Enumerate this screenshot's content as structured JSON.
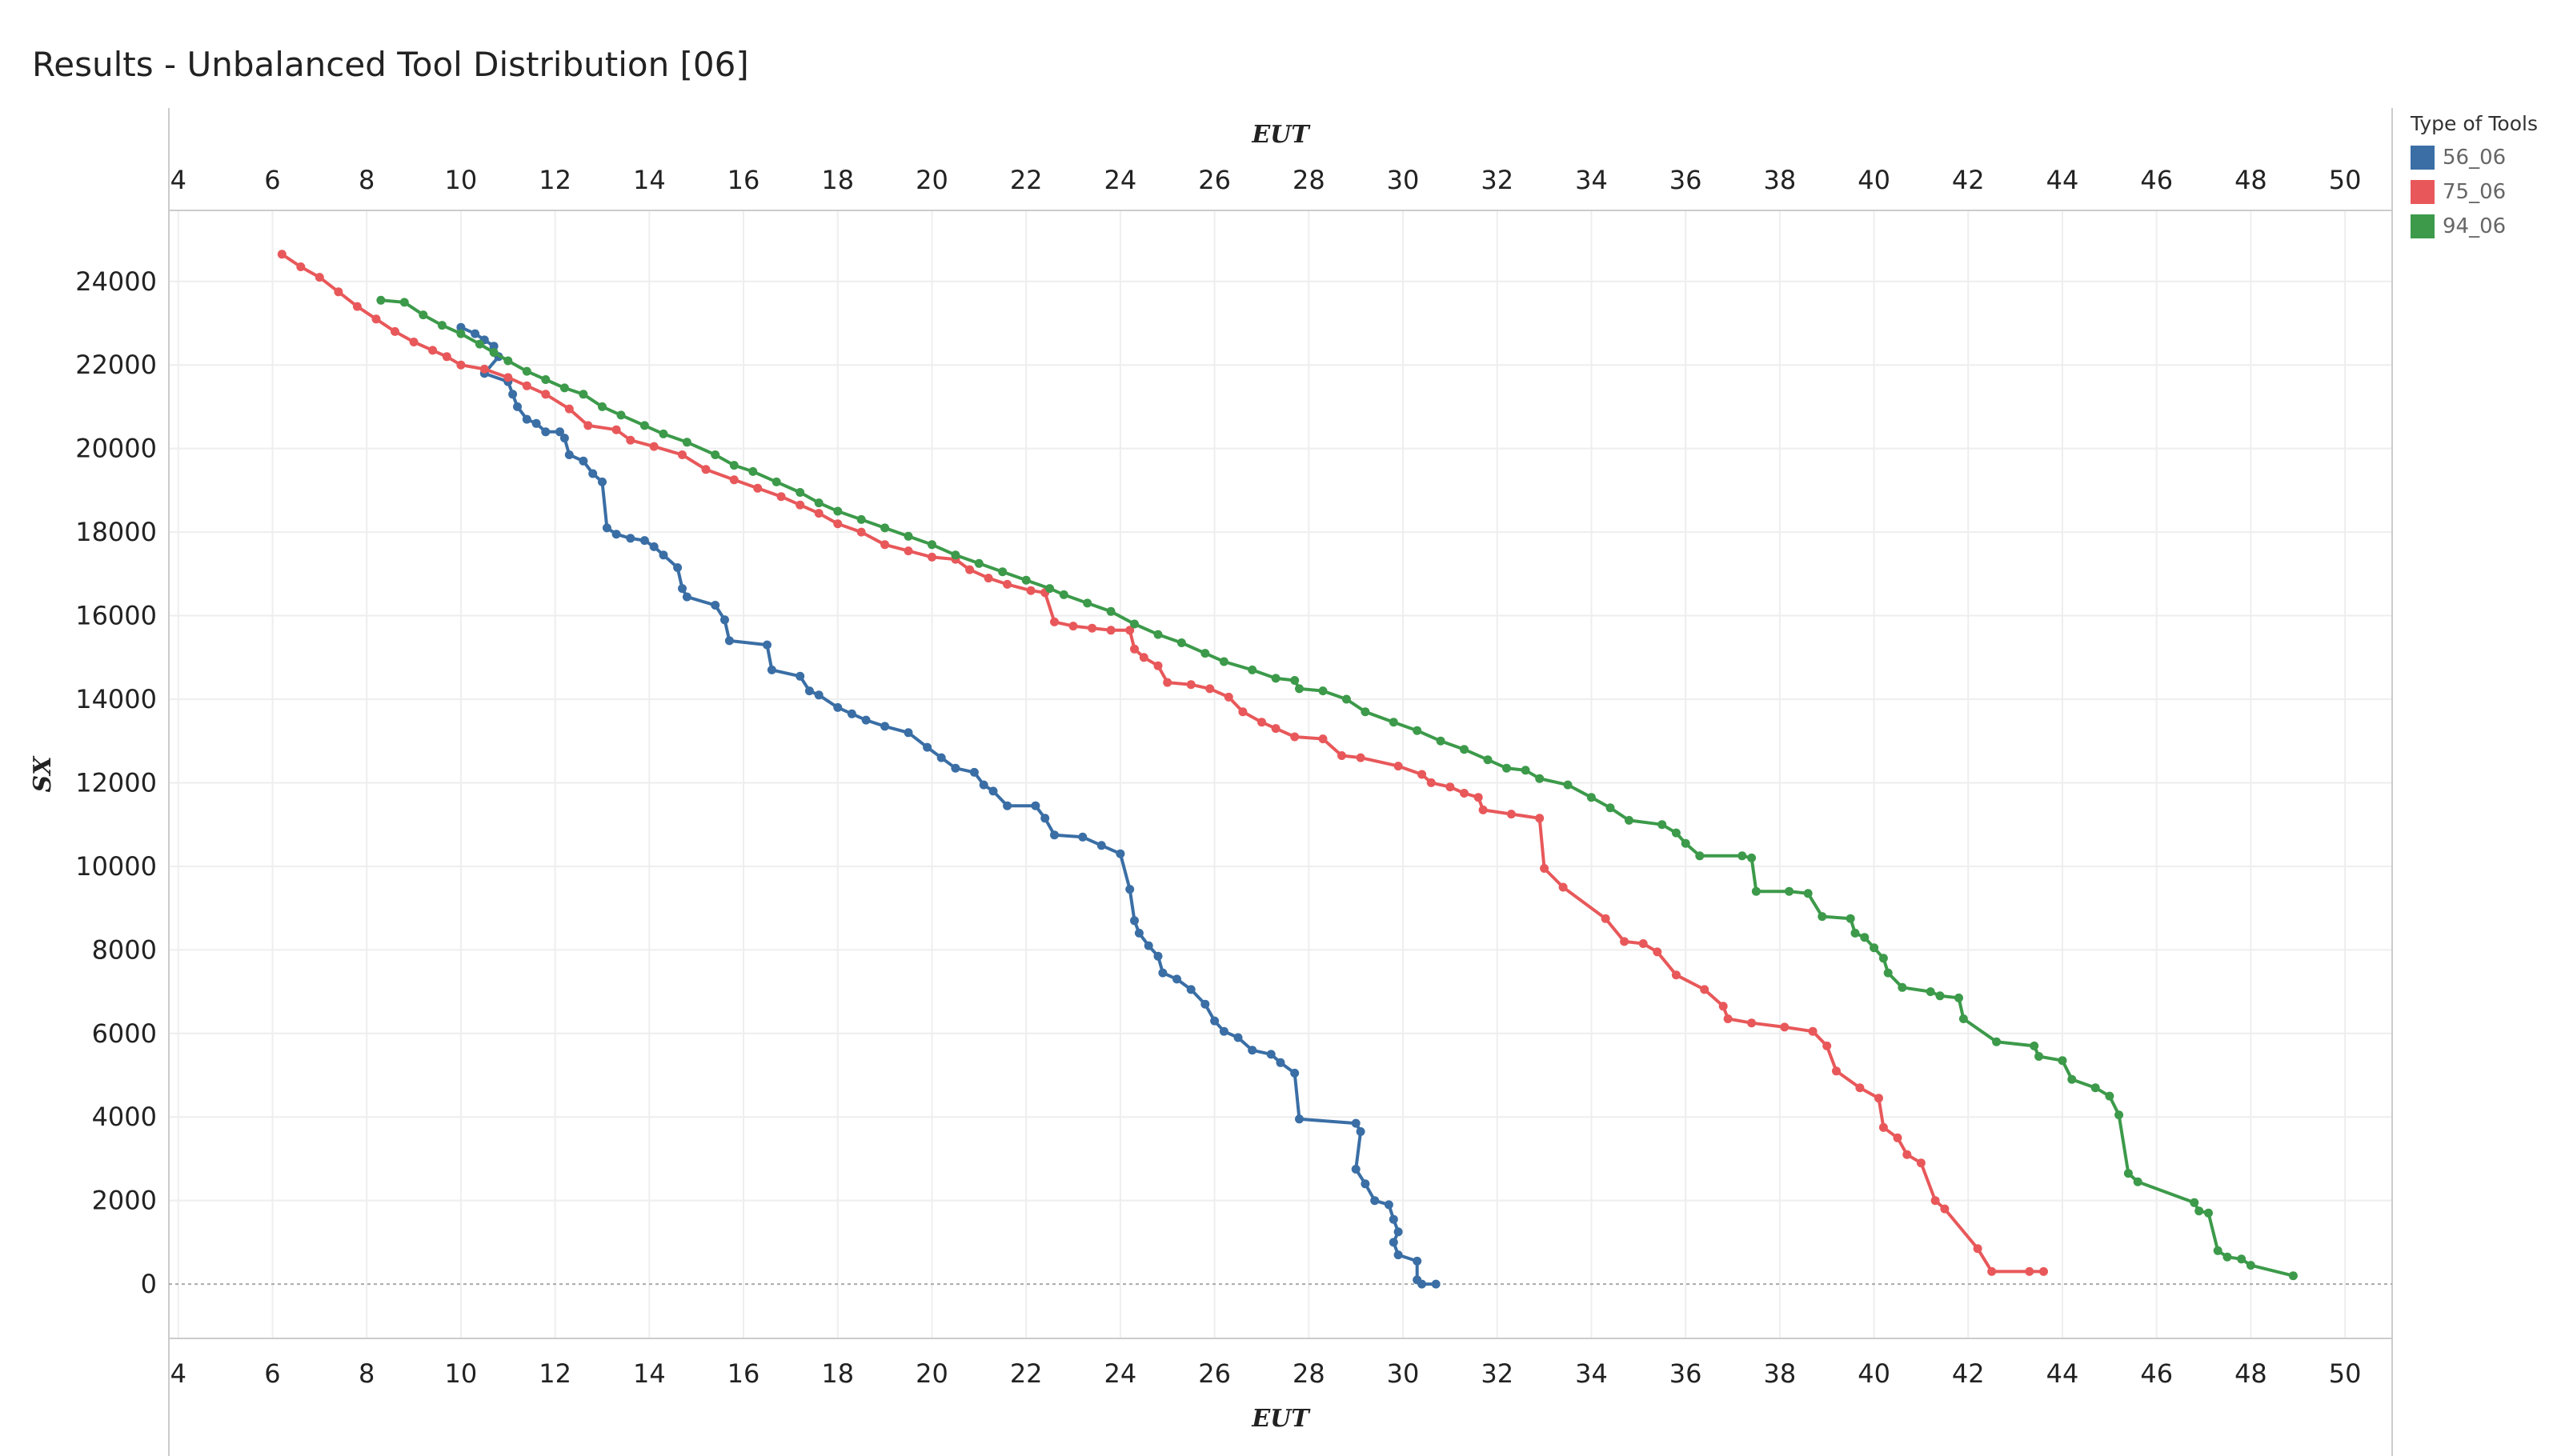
{
  "header": {
    "title": "Results - Unbalanced Tool Distribution [06]"
  },
  "legend": {
    "title": "Type of Tools",
    "items": [
      {
        "label": "56_06",
        "color": "#3A6EA5"
      },
      {
        "label": "75_06",
        "color": "#E8585A"
      },
      {
        "label": "94_06",
        "color": "#3C9A4A"
      }
    ]
  },
  "chart_data": {
    "type": "line",
    "xlabel_top": "EUT",
    "xlabel_bottom": "EUT",
    "ylabel": "SX",
    "xlim": [
      3.8,
      51
    ],
    "ylim": [
      -1300,
      25700
    ],
    "x_ticks": [
      4,
      6,
      8,
      10,
      12,
      14,
      16,
      18,
      20,
      22,
      24,
      26,
      28,
      30,
      32,
      34,
      36,
      38,
      40,
      42,
      44,
      46,
      48,
      50
    ],
    "y_ticks": [
      0,
      2000,
      4000,
      6000,
      8000,
      10000,
      12000,
      14000,
      16000,
      18000,
      20000,
      22000,
      24000
    ],
    "grid": true,
    "zero_line": "dotted",
    "legend_position": "right",
    "series": [
      {
        "name": "56_06",
        "color": "#3A6EA5",
        "points": [
          [
            10.0,
            22900
          ],
          [
            10.3,
            22750
          ],
          [
            10.5,
            22600
          ],
          [
            10.7,
            22450
          ],
          [
            10.8,
            22200
          ],
          [
            10.5,
            21800
          ],
          [
            11.0,
            21600
          ],
          [
            11.1,
            21300
          ],
          [
            11.2,
            21000
          ],
          [
            11.4,
            20700
          ],
          [
            11.6,
            20600
          ],
          [
            11.8,
            20400
          ],
          [
            12.1,
            20400
          ],
          [
            12.2,
            20250
          ],
          [
            12.3,
            19850
          ],
          [
            12.6,
            19700
          ],
          [
            12.8,
            19400
          ],
          [
            13.0,
            19200
          ],
          [
            13.1,
            18100
          ],
          [
            13.3,
            17950
          ],
          [
            13.6,
            17850
          ],
          [
            13.9,
            17800
          ],
          [
            14.1,
            17650
          ],
          [
            14.3,
            17450
          ],
          [
            14.6,
            17150
          ],
          [
            14.7,
            16650
          ],
          [
            14.8,
            16450
          ],
          [
            15.4,
            16250
          ],
          [
            15.6,
            15900
          ],
          [
            15.7,
            15400
          ],
          [
            16.5,
            15300
          ],
          [
            16.6,
            14700
          ],
          [
            17.2,
            14550
          ],
          [
            17.4,
            14200
          ],
          [
            17.6,
            14100
          ],
          [
            18.0,
            13800
          ],
          [
            18.3,
            13650
          ],
          [
            18.6,
            13500
          ],
          [
            19.0,
            13350
          ],
          [
            19.5,
            13200
          ],
          [
            19.9,
            12850
          ],
          [
            20.2,
            12600
          ],
          [
            20.5,
            12350
          ],
          [
            20.9,
            12250
          ],
          [
            21.1,
            11950
          ],
          [
            21.3,
            11800
          ],
          [
            21.6,
            11450
          ],
          [
            22.2,
            11450
          ],
          [
            22.4,
            11150
          ],
          [
            22.6,
            10750
          ],
          [
            23.2,
            10700
          ],
          [
            23.6,
            10500
          ],
          [
            24.0,
            10300
          ],
          [
            24.2,
            9450
          ],
          [
            24.3,
            8700
          ],
          [
            24.4,
            8400
          ],
          [
            24.6,
            8100
          ],
          [
            24.8,
            7850
          ],
          [
            24.9,
            7450
          ],
          [
            25.2,
            7300
          ],
          [
            25.5,
            7050
          ],
          [
            25.8,
            6700
          ],
          [
            26.0,
            6300
          ],
          [
            26.2,
            6050
          ],
          [
            26.5,
            5900
          ],
          [
            26.8,
            5600
          ],
          [
            27.2,
            5500
          ],
          [
            27.4,
            5300
          ],
          [
            27.7,
            5050
          ],
          [
            27.8,
            3950
          ],
          [
            29.0,
            3850
          ],
          [
            29.1,
            3650
          ],
          [
            29.0,
            2750
          ],
          [
            29.2,
            2400
          ],
          [
            29.4,
            2000
          ],
          [
            29.7,
            1900
          ],
          [
            29.8,
            1550
          ],
          [
            29.9,
            1250
          ],
          [
            29.8,
            1000
          ],
          [
            29.9,
            700
          ],
          [
            30.3,
            550
          ],
          [
            30.3,
            100
          ],
          [
            30.4,
            0
          ],
          [
            30.7,
            0
          ]
        ]
      },
      {
        "name": "75_06",
        "color": "#E8585A",
        "points": [
          [
            6.2,
            24650
          ],
          [
            6.6,
            24350
          ],
          [
            7.0,
            24100
          ],
          [
            7.4,
            23750
          ],
          [
            7.8,
            23400
          ],
          [
            8.2,
            23100
          ],
          [
            8.6,
            22800
          ],
          [
            9.0,
            22550
          ],
          [
            9.4,
            22350
          ],
          [
            9.7,
            22200
          ],
          [
            10.0,
            22000
          ],
          [
            10.5,
            21900
          ],
          [
            11.0,
            21700
          ],
          [
            11.4,
            21500
          ],
          [
            11.8,
            21300
          ],
          [
            12.3,
            20950
          ],
          [
            12.7,
            20550
          ],
          [
            13.3,
            20450
          ],
          [
            13.6,
            20200
          ],
          [
            14.1,
            20050
          ],
          [
            14.7,
            19850
          ],
          [
            15.2,
            19500
          ],
          [
            15.8,
            19250
          ],
          [
            16.3,
            19050
          ],
          [
            16.8,
            18850
          ],
          [
            17.2,
            18650
          ],
          [
            17.6,
            18450
          ],
          [
            18.0,
            18200
          ],
          [
            18.5,
            18000
          ],
          [
            19.0,
            17700
          ],
          [
            19.5,
            17550
          ],
          [
            20.0,
            17400
          ],
          [
            20.5,
            17350
          ],
          [
            20.8,
            17100
          ],
          [
            21.2,
            16900
          ],
          [
            21.6,
            16750
          ],
          [
            22.1,
            16600
          ],
          [
            22.4,
            16550
          ],
          [
            22.6,
            15850
          ],
          [
            23.0,
            15750
          ],
          [
            23.4,
            15700
          ],
          [
            23.8,
            15650
          ],
          [
            24.2,
            15650
          ],
          [
            24.3,
            15200
          ],
          [
            24.5,
            15000
          ],
          [
            24.8,
            14800
          ],
          [
            25.0,
            14400
          ],
          [
            25.5,
            14350
          ],
          [
            25.9,
            14250
          ],
          [
            26.3,
            14050
          ],
          [
            26.6,
            13700
          ],
          [
            27.0,
            13450
          ],
          [
            27.3,
            13300
          ],
          [
            27.7,
            13100
          ],
          [
            28.3,
            13050
          ],
          [
            28.7,
            12650
          ],
          [
            29.1,
            12600
          ],
          [
            29.9,
            12400
          ],
          [
            30.4,
            12200
          ],
          [
            30.6,
            12000
          ],
          [
            31.0,
            11900
          ],
          [
            31.3,
            11750
          ],
          [
            31.6,
            11650
          ],
          [
            31.7,
            11350
          ],
          [
            32.3,
            11250
          ],
          [
            32.9,
            11150
          ],
          [
            33.0,
            9950
          ],
          [
            33.4,
            9500
          ],
          [
            34.3,
            8750
          ],
          [
            34.7,
            8200
          ],
          [
            35.1,
            8150
          ],
          [
            35.4,
            7950
          ],
          [
            35.8,
            7400
          ],
          [
            36.4,
            7050
          ],
          [
            36.8,
            6650
          ],
          [
            36.9,
            6350
          ],
          [
            37.4,
            6250
          ],
          [
            38.1,
            6150
          ],
          [
            38.7,
            6050
          ],
          [
            39.0,
            5700
          ],
          [
            39.2,
            5100
          ],
          [
            39.7,
            4700
          ],
          [
            40.1,
            4450
          ],
          [
            40.2,
            3750
          ],
          [
            40.5,
            3500
          ],
          [
            40.7,
            3100
          ],
          [
            41.0,
            2900
          ],
          [
            41.3,
            2000
          ],
          [
            41.5,
            1800
          ],
          [
            42.2,
            850
          ],
          [
            42.5,
            300
          ],
          [
            43.3,
            300
          ],
          [
            43.6,
            300
          ]
        ]
      },
      {
        "name": "94_06",
        "color": "#3C9A4A",
        "points": [
          [
            8.3,
            23550
          ],
          [
            8.8,
            23500
          ],
          [
            9.2,
            23200
          ],
          [
            9.6,
            22950
          ],
          [
            10.0,
            22750
          ],
          [
            10.4,
            22500
          ],
          [
            10.7,
            22300
          ],
          [
            11.0,
            22100
          ],
          [
            11.4,
            21850
          ],
          [
            11.8,
            21650
          ],
          [
            12.2,
            21450
          ],
          [
            12.6,
            21300
          ],
          [
            13.0,
            21000
          ],
          [
            13.4,
            20800
          ],
          [
            13.9,
            20550
          ],
          [
            14.3,
            20350
          ],
          [
            14.8,
            20150
          ],
          [
            15.4,
            19850
          ],
          [
            15.8,
            19600
          ],
          [
            16.2,
            19450
          ],
          [
            16.7,
            19200
          ],
          [
            17.2,
            18950
          ],
          [
            17.6,
            18700
          ],
          [
            18.0,
            18500
          ],
          [
            18.5,
            18300
          ],
          [
            19.0,
            18100
          ],
          [
            19.5,
            17900
          ],
          [
            20.0,
            17700
          ],
          [
            20.5,
            17450
          ],
          [
            21.0,
            17250
          ],
          [
            21.5,
            17050
          ],
          [
            22.0,
            16850
          ],
          [
            22.5,
            16650
          ],
          [
            22.8,
            16500
          ],
          [
            23.3,
            16300
          ],
          [
            23.8,
            16100
          ],
          [
            24.3,
            15800
          ],
          [
            24.8,
            15550
          ],
          [
            25.3,
            15350
          ],
          [
            25.8,
            15100
          ],
          [
            26.2,
            14900
          ],
          [
            26.8,
            14700
          ],
          [
            27.3,
            14500
          ],
          [
            27.7,
            14450
          ],
          [
            27.8,
            14250
          ],
          [
            28.3,
            14200
          ],
          [
            28.8,
            14000
          ],
          [
            29.2,
            13700
          ],
          [
            29.8,
            13450
          ],
          [
            30.3,
            13250
          ],
          [
            30.8,
            13000
          ],
          [
            31.3,
            12800
          ],
          [
            31.8,
            12550
          ],
          [
            32.2,
            12350
          ],
          [
            32.6,
            12300
          ],
          [
            32.9,
            12100
          ],
          [
            33.5,
            11950
          ],
          [
            34.0,
            11650
          ],
          [
            34.4,
            11400
          ],
          [
            34.8,
            11100
          ],
          [
            35.5,
            11000
          ],
          [
            35.8,
            10800
          ],
          [
            36.0,
            10550
          ],
          [
            36.3,
            10250
          ],
          [
            37.2,
            10250
          ],
          [
            37.4,
            10200
          ],
          [
            37.5,
            9400
          ],
          [
            38.2,
            9400
          ],
          [
            38.6,
            9350
          ],
          [
            38.9,
            8800
          ],
          [
            39.5,
            8750
          ],
          [
            39.6,
            8400
          ],
          [
            39.8,
            8300
          ],
          [
            40.0,
            8050
          ],
          [
            40.2,
            7800
          ],
          [
            40.3,
            7450
          ],
          [
            40.6,
            7100
          ],
          [
            41.2,
            7000
          ],
          [
            41.4,
            6900
          ],
          [
            41.8,
            6850
          ],
          [
            41.9,
            6350
          ],
          [
            42.6,
            5800
          ],
          [
            43.4,
            5700
          ],
          [
            43.5,
            5450
          ],
          [
            44.0,
            5350
          ],
          [
            44.2,
            4900
          ],
          [
            44.7,
            4700
          ],
          [
            45.0,
            4500
          ],
          [
            45.2,
            4050
          ],
          [
            45.4,
            2650
          ],
          [
            45.6,
            2450
          ],
          [
            46.8,
            1950
          ],
          [
            46.9,
            1750
          ],
          [
            47.1,
            1700
          ],
          [
            47.3,
            800
          ],
          [
            47.5,
            650
          ],
          [
            47.8,
            600
          ],
          [
            48.0,
            450
          ],
          [
            48.9,
            200
          ]
        ]
      }
    ]
  }
}
